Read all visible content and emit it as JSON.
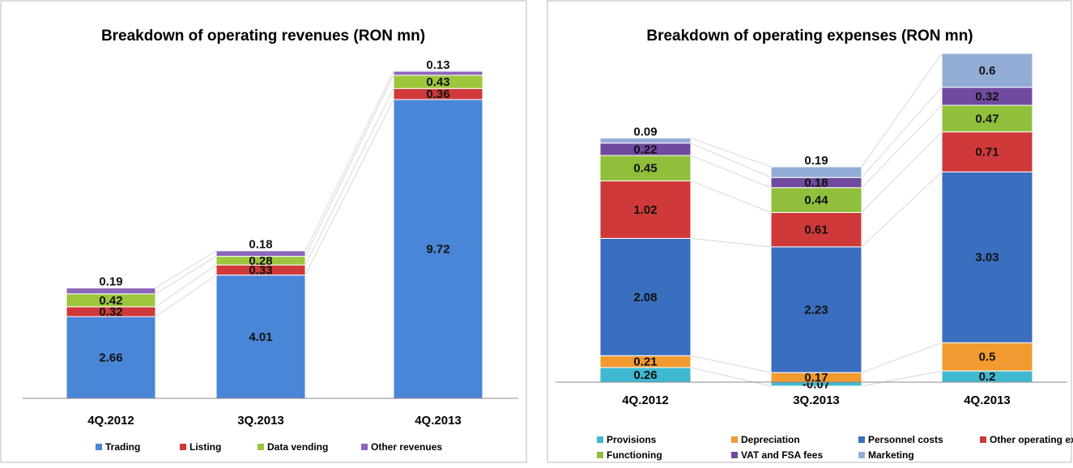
{
  "chart_data": [
    {
      "type": "bar",
      "stacked": true,
      "title": "Breakdown of operating revenues (RON mn)",
      "categories": [
        "4Q.2012",
        "3Q.2013",
        "4Q.2013"
      ],
      "series": [
        {
          "name": "Trading",
          "color": "#4a86d8",
          "values": [
            2.66,
            4.01,
            9.72
          ]
        },
        {
          "name": "Listing",
          "color": "#d0393a",
          "values": [
            0.32,
            0.33,
            0.36
          ]
        },
        {
          "name": "Data vending",
          "color": "#9cc63c",
          "values": [
            0.42,
            0.28,
            0.43
          ]
        },
        {
          "name": "Other revenues",
          "color": "#8c66bb",
          "values": [
            0.19,
            0.18,
            0.13
          ]
        }
      ]
    },
    {
      "type": "bar",
      "stacked": true,
      "title": "Breakdown of operating expenses (RON mn)",
      "categories": [
        "4Q.2012",
        "3Q.2013",
        "4Q.2013"
      ],
      "series": [
        {
          "name": "Provisions",
          "color": "#3fb9d1",
          "values": [
            0.26,
            -0.07,
            0.2
          ]
        },
        {
          "name": "Depreciation",
          "color": "#f29a2f",
          "values": [
            0.21,
            0.17,
            0.5
          ]
        },
        {
          "name": "Personnel costs",
          "color": "#3a6ebf",
          "values": [
            2.08,
            2.23,
            3.03
          ]
        },
        {
          "name": "Other operating exp.",
          "color": "#d0393a",
          "values": [
            1.02,
            0.61,
            0.71
          ]
        },
        {
          "name": "Functioning",
          "color": "#8fbf3b",
          "values": [
            0.45,
            0.44,
            0.47
          ]
        },
        {
          "name": "VAT and FSA fees",
          "color": "#6f4a9f",
          "values": [
            0.22,
            0.18,
            0.32
          ]
        },
        {
          "name": "Marketing",
          "color": "#93acd6",
          "values": [
            0.09,
            0.19,
            0.6
          ]
        }
      ]
    }
  ]
}
